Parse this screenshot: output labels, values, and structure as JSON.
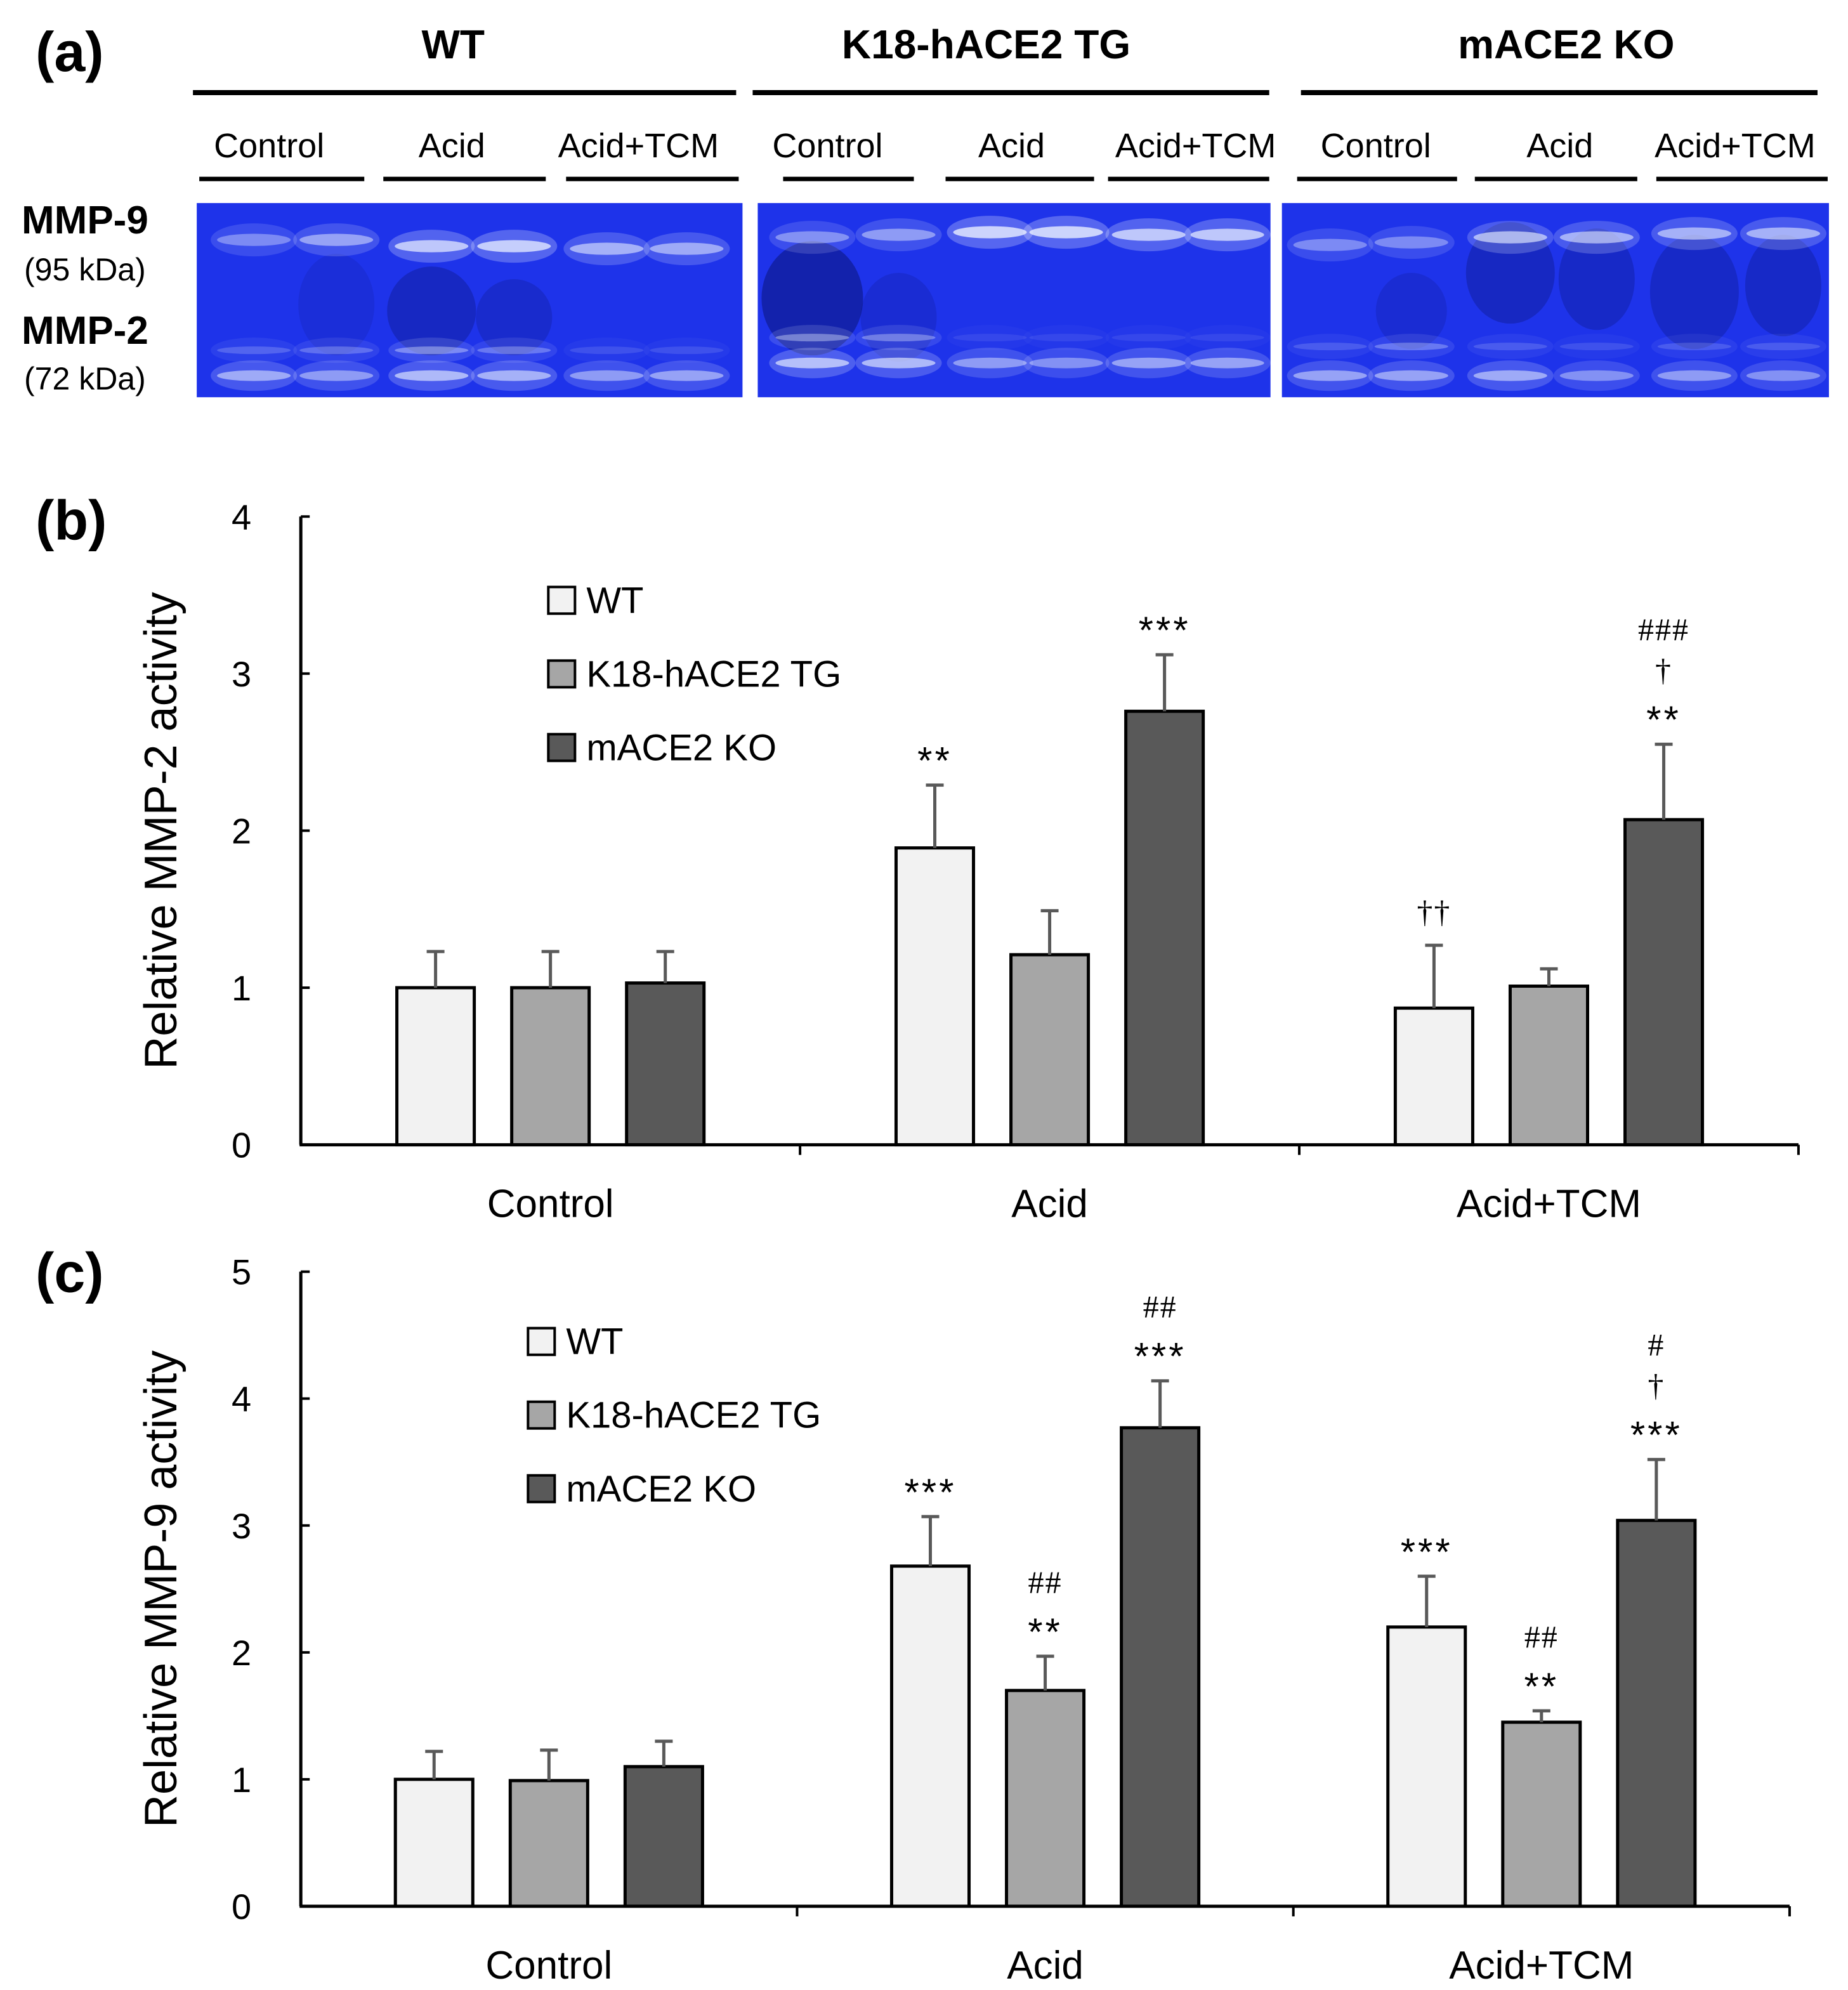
{
  "panel_a": {
    "label": "(a)",
    "gel_color": "#1e33ea",
    "gel_dark_color": "#0b1478",
    "band_color": "#e8eeff",
    "groups": [
      {
        "name": "WT",
        "lanes": [
          "Control",
          "Acid",
          "Acid+TCM"
        ]
      },
      {
        "name": "K18-hACE2 TG",
        "lanes": [
          "Control",
          "Acid",
          "Acid+TCM"
        ]
      },
      {
        "name": "mACE2 KO",
        "lanes": [
          "Control",
          "Acid",
          "Acid+TCM"
        ]
      }
    ],
    "bands": [
      {
        "name": "MMP-9",
        "size": "(95 kDa)"
      },
      {
        "name": "MMP-2",
        "size": "(72 kDa)"
      }
    ]
  },
  "colors": {
    "axis": "#000000",
    "error_bar": "#595959"
  },
  "chart_data": [
    {
      "panel_label": "(b)",
      "type": "bar",
      "ylabel": "Relative MMP-2 activity",
      "ylim": [
        0,
        4
      ],
      "yticks": [
        0,
        1,
        2,
        3,
        4
      ],
      "legend_position": "upper-left",
      "categories": [
        "Control",
        "Acid",
        "Acid+TCM"
      ],
      "series": [
        {
          "name": "WT",
          "color": "#f2f2f2",
          "values": [
            1.0,
            1.89,
            0.87
          ],
          "errors": [
            0.23,
            0.4,
            0.4
          ],
          "annotations": [
            [],
            [
              "**"
            ],
            [
              "††"
            ]
          ]
        },
        {
          "name": "K18-hACE2 TG",
          "color": "#a6a6a6",
          "values": [
            1.0,
            1.21,
            1.01
          ],
          "errors": [
            0.23,
            0.28,
            0.11
          ],
          "annotations": [
            [],
            [],
            []
          ]
        },
        {
          "name": "mACE2 KO",
          "color": "#595959",
          "values": [
            1.03,
            2.76,
            2.07
          ],
          "errors": [
            0.2,
            0.36,
            0.48
          ],
          "annotations": [
            [],
            [
              "***"
            ],
            [
              "###",
              "†",
              "**"
            ]
          ]
        }
      ]
    },
    {
      "panel_label": "(c)",
      "type": "bar",
      "ylabel": "Relative MMP-9 activity",
      "ylim": [
        0,
        5
      ],
      "yticks": [
        0,
        1,
        2,
        3,
        4,
        5
      ],
      "legend_position": "upper-left",
      "categories": [
        "Control",
        "Acid",
        "Acid+TCM"
      ],
      "series": [
        {
          "name": "WT",
          "color": "#f2f2f2",
          "values": [
            1.0,
            2.68,
            2.2
          ],
          "errors": [
            0.22,
            0.39,
            0.4
          ],
          "annotations": [
            [],
            [
              "***"
            ],
            [
              "***"
            ]
          ]
        },
        {
          "name": "K18-hACE2 TG",
          "color": "#a6a6a6",
          "values": [
            0.99,
            1.7,
            1.45
          ],
          "errors": [
            0.24,
            0.27,
            0.09
          ],
          "annotations": [
            [],
            [
              "##",
              "**"
            ],
            [
              "##",
              "**"
            ]
          ]
        },
        {
          "name": "mACE2 KO",
          "color": "#595959",
          "values": [
            1.1,
            3.77,
            3.04
          ],
          "errors": [
            0.2,
            0.37,
            0.48
          ],
          "annotations": [
            [],
            [
              "##",
              "***"
            ],
            [
              "#",
              "†",
              "***"
            ]
          ]
        }
      ]
    }
  ]
}
